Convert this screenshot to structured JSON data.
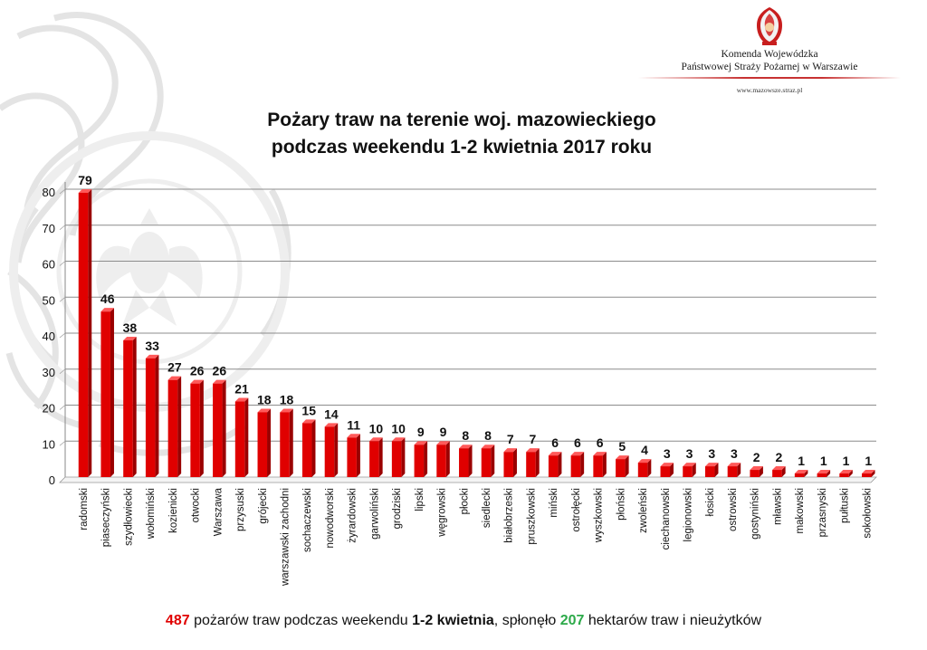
{
  "header": {
    "org_line1": "Komenda Wojewódzka",
    "org_line2": "Państwowej Straży Pożarnej w Warszawie",
    "website": "www.mazowsze.straz.pl"
  },
  "chart_data": {
    "type": "bar",
    "title": "Pożary traw na terenie woj. mazowieckiego podczas weekendu 1-2 kwietnia 2017 roku",
    "title_lines": [
      "Pożary traw na terenie woj. mazowieckiego",
      "podczas weekendu 1-2 kwietnia 2017 roku"
    ],
    "xlabel": "",
    "ylabel": "",
    "ylim": [
      0,
      80
    ],
    "yticks": [
      0,
      10,
      20,
      30,
      40,
      50,
      60,
      70,
      80
    ],
    "grid": true,
    "legend": "none",
    "bar_color": "#e00000",
    "categories": [
      "radomski",
      "piaseczyński",
      "szydłowiecki",
      "wołomiński",
      "kozienicki",
      "otwocki",
      "Warszawa",
      "przysuski",
      "grójecki",
      "warszawski zachodni",
      "sochaczewski",
      "nowodworski",
      "żyrardowski",
      "garwoliński",
      "grodziski",
      "lipski",
      "węgrowski",
      "płocki",
      "siedlecki",
      "białobrzeski",
      "pruszkowski",
      "miński",
      "ostrołęcki",
      "wyszkowski",
      "płoński",
      "zwoleński",
      "ciechanowski",
      "legionowski",
      "łosicki",
      "ostrowski",
      "gostyniński",
      "mławski",
      "makowski",
      "przasnyski",
      "pułtuski",
      "sokołowski"
    ],
    "values": [
      79,
      46,
      38,
      33,
      27,
      26,
      26,
      21,
      18,
      18,
      15,
      14,
      11,
      10,
      10,
      9,
      9,
      8,
      8,
      7,
      7,
      6,
      6,
      6,
      5,
      4,
      3,
      3,
      3,
      3,
      2,
      2,
      1,
      1,
      1,
      1
    ],
    "data_labels": [
      "79",
      "46",
      "38",
      "33",
      "27",
      "26",
      "26",
      "21",
      "18",
      "18",
      "15",
      "14",
      "11",
      "10",
      "10",
      "9",
      "9",
      "8",
      "8",
      "7",
      "7",
      "6",
      "6",
      "6",
      "5",
      "4",
      "3",
      "3",
      "3",
      "3",
      "2",
      "2",
      "1",
      "1",
      "1",
      "1"
    ]
  },
  "footer": {
    "fires_count": "487",
    "text1": " pożarów traw  podczas weekendu ",
    "dates": "1-2 kwietnia",
    "text2": ", spłonęło ",
    "hectares": "207",
    "text3": " hektarów traw i nieużytków"
  },
  "colors": {
    "accent_red": "#e00000",
    "accent_green": "#2daa4a"
  }
}
